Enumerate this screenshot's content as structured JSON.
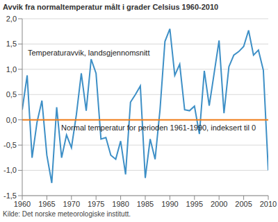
{
  "chart_data": {
    "type": "line",
    "title": "Avvik fra normaltemperatur målt i grader Celsius 1960-2010",
    "source": "Kilde: Det norske meteorologiske institutt.",
    "x": [
      1960,
      1961,
      1962,
      1963,
      1964,
      1965,
      1966,
      1967,
      1968,
      1969,
      1970,
      1971,
      1972,
      1973,
      1974,
      1975,
      1976,
      1977,
      1978,
      1979,
      1980,
      1981,
      1982,
      1983,
      1984,
      1985,
      1986,
      1987,
      1988,
      1989,
      1990,
      1991,
      1992,
      1993,
      1994,
      1995,
      1996,
      1997,
      1998,
      1999,
      2000,
      2001,
      2002,
      2003,
      2004,
      2005,
      2006,
      2007,
      2008,
      2009,
      2010
    ],
    "series": [
      {
        "name": "Temperaturavvik, landsgjennomsnitt",
        "color": "#3d8fc6",
        "values": [
          0.2,
          0.88,
          -0.75,
          -0.05,
          0.38,
          -0.7,
          -1.25,
          0.25,
          -0.75,
          -0.3,
          -0.55,
          0.1,
          0.92,
          0.18,
          1.2,
          0.92,
          -0.38,
          -0.35,
          -0.7,
          -0.78,
          -0.42,
          -1.08,
          0.35,
          0.5,
          0.67,
          -1.15,
          -0.38,
          -0.78,
          0.2,
          1.55,
          1.8,
          0.88,
          1.1,
          0.2,
          0.18,
          0.27,
          -0.28,
          0.97,
          0.28,
          0.92,
          1.57,
          0.13,
          1.05,
          1.28,
          1.35,
          1.45,
          1.77,
          1.28,
          1.38,
          0.98,
          -1.0
        ]
      },
      {
        "name": "Normal temperatur for perioden 1961-1990, indeksert til 0",
        "color": "#f07d1a",
        "values": [
          0,
          0,
          0,
          0,
          0,
          0,
          0,
          0,
          0,
          0,
          0,
          0,
          0,
          0,
          0,
          0,
          0,
          0,
          0,
          0,
          0,
          0,
          0,
          0,
          0,
          0,
          0,
          0,
          0,
          0,
          0,
          0,
          0,
          0,
          0,
          0,
          0,
          0,
          0,
          0,
          0,
          0,
          0,
          0,
          0,
          0,
          0,
          0,
          0,
          0,
          0
        ]
      }
    ],
    "xlim": [
      1960,
      2010
    ],
    "xticks": [
      1960,
      1965,
      1970,
      1975,
      1980,
      1985,
      1990,
      1995,
      2000,
      2005,
      2010
    ],
    "ylim": [
      -1.5,
      2.0
    ],
    "yticks": [
      {
        "value": -1.5,
        "label": "-1,5"
      },
      {
        "value": -1.0,
        "label": "-1,0"
      },
      {
        "value": -0.5,
        "label": "-0,5"
      },
      {
        "value": 0,
        "label": "0,0"
      },
      {
        "value": 0.5,
        "label": "0,5"
      },
      {
        "value": 1.0,
        "label": "1,0"
      },
      {
        "value": 1.5,
        "label": "1,5"
      },
      {
        "value": 2.0,
        "label": "2,0"
      }
    ],
    "grid": true
  }
}
